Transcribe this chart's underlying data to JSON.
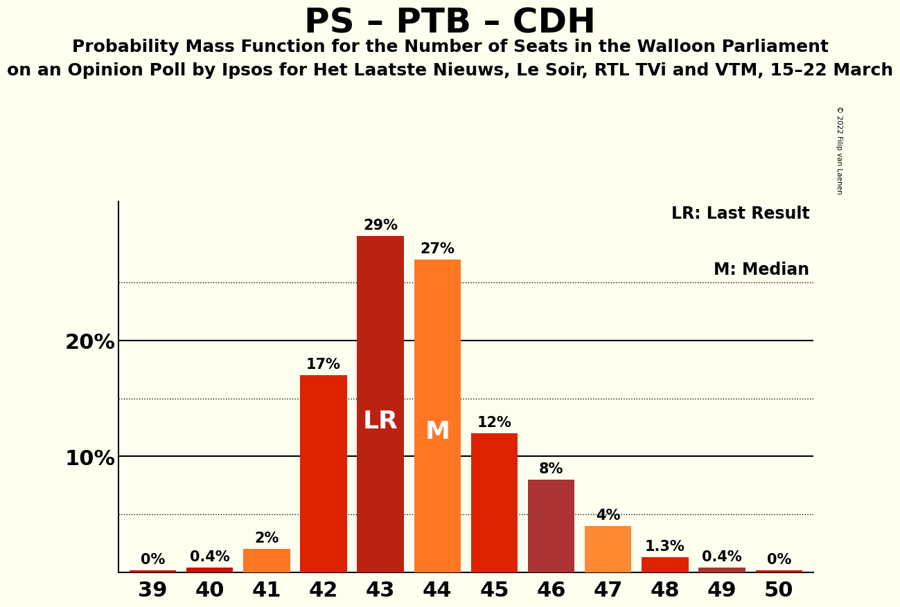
{
  "title": "PS – PTB – CDH",
  "subtitle1": "Probability Mass Function for the Number of Seats in the Walloon Parliament",
  "subtitle2": "on an Opinion Poll by Ipsos for Het Laatste Nieuws, Le Soir, RTL TVi and VTM, 15–22 March",
  "copyright": "© 2022 Filip van Laenen",
  "categories": [
    39,
    40,
    41,
    42,
    43,
    44,
    45,
    46,
    47,
    48,
    49,
    50
  ],
  "values": [
    0.15,
    0.4,
    2.0,
    17.0,
    29.0,
    27.0,
    12.0,
    8.0,
    4.0,
    1.3,
    0.4,
    0.15
  ],
  "labels": [
    "0%",
    "0.4%",
    "2%",
    "17%",
    "29%",
    "27%",
    "12%",
    "8%",
    "4%",
    "1.3%",
    "0.4%",
    "0%"
  ],
  "show_label": [
    true,
    true,
    true,
    true,
    true,
    true,
    true,
    true,
    true,
    true,
    true,
    true
  ],
  "colors": [
    "#cc1100",
    "#cc1100",
    "#ff7722",
    "#dd2200",
    "#bb2211",
    "#ff7722",
    "#dd2200",
    "#aa3333",
    "#ff8833",
    "#dd2200",
    "#aa3333",
    "#cc1100"
  ],
  "LR_seat": 43,
  "M_seat": 44,
  "background_color": "#fffff0",
  "legend_LR": "LR: Last Result",
  "legend_M": "M: Median",
  "ytick_values": [
    10,
    20
  ],
  "dotted_yticks": [
    5,
    15,
    25
  ],
  "ylim": [
    0,
    32
  ],
  "title_fontsize": 36,
  "subtitle_fontsize": 18,
  "axis_fontsize": 22,
  "label_fontsize": 15
}
